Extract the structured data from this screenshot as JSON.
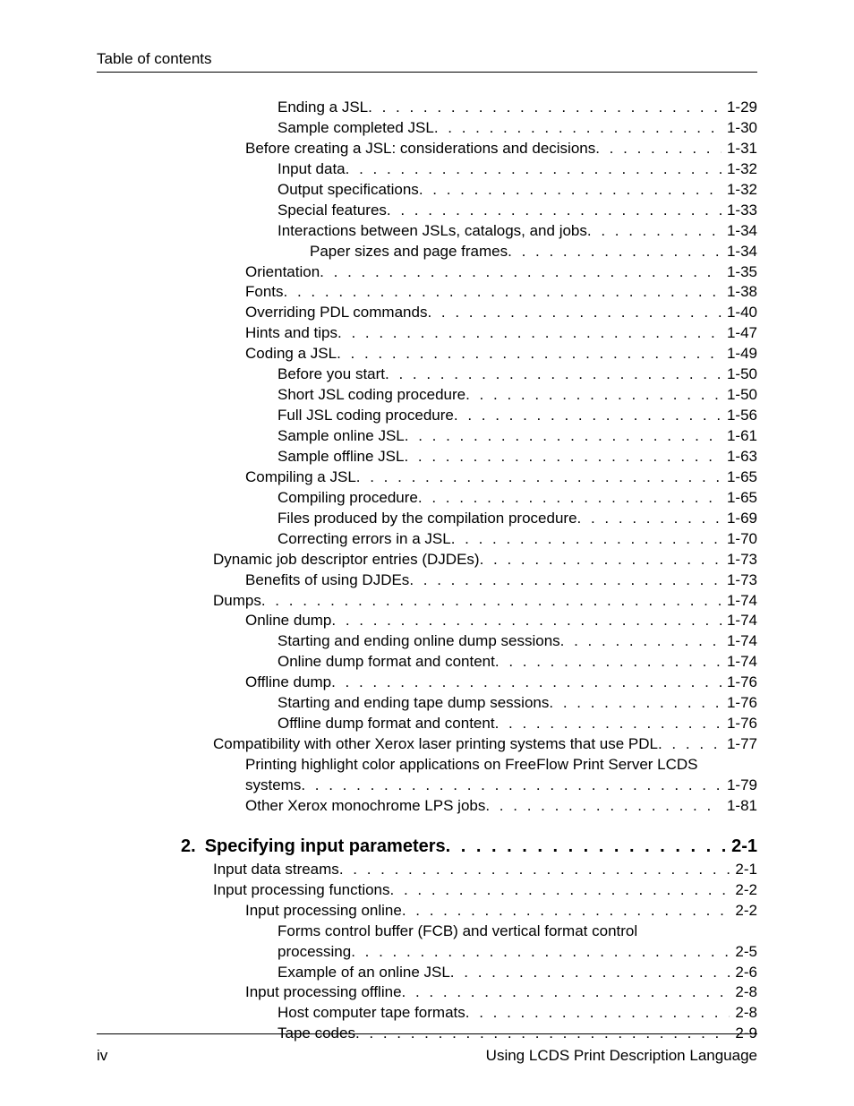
{
  "header": {
    "title": "Table of contents"
  },
  "footer": {
    "left": "iv",
    "right": "Using LCDS Print Description Language"
  },
  "toc": {
    "entries": [
      {
        "indent": 2,
        "label": "Ending a JSL",
        "page": "1-29"
      },
      {
        "indent": 2,
        "label": "Sample completed JSL",
        "page": "1-30"
      },
      {
        "indent": 1,
        "label": "Before creating a JSL: considerations and decisions",
        "page": "1-31"
      },
      {
        "indent": 2,
        "label": "Input data",
        "page": "1-32"
      },
      {
        "indent": 2,
        "label": "Output specifications",
        "page": "1-32"
      },
      {
        "indent": 2,
        "label": "Special features",
        "page": "1-33"
      },
      {
        "indent": 2,
        "label": "Interactions between JSLs, catalogs, and jobs",
        "page": "1-34"
      },
      {
        "indent": 3,
        "label": "Paper sizes and page frames",
        "page": "1-34"
      },
      {
        "indent": 1,
        "label": "Orientation",
        "page": "1-35"
      },
      {
        "indent": 1,
        "label": "Fonts",
        "page": "1-38"
      },
      {
        "indent": 1,
        "label": "Overriding PDL commands",
        "page": "1-40"
      },
      {
        "indent": 1,
        "label": "Hints and tips",
        "page": "1-47"
      },
      {
        "indent": 1,
        "label": "Coding a JSL",
        "page": "1-49"
      },
      {
        "indent": 2,
        "label": "Before you start",
        "page": "1-50"
      },
      {
        "indent": 2,
        "label": "Short JSL coding procedure",
        "page": "1-50"
      },
      {
        "indent": 2,
        "label": "Full JSL coding procedure",
        "page": "1-56"
      },
      {
        "indent": 2,
        "label": "Sample online JSL",
        "page": "1-61"
      },
      {
        "indent": 2,
        "label": "Sample offline JSL",
        "page": "1-63"
      },
      {
        "indent": 1,
        "label": "Compiling a JSL",
        "page": "1-65"
      },
      {
        "indent": 2,
        "label": "Compiling procedure",
        "page": "1-65"
      },
      {
        "indent": 2,
        "label": "Files produced by the compilation procedure",
        "page": "1-69"
      },
      {
        "indent": 2,
        "label": "Correcting errors in a JSL",
        "page": "1-70"
      },
      {
        "indent": 0,
        "label": "Dynamic job descriptor entries (DJDEs)",
        "page": "1-73"
      },
      {
        "indent": 1,
        "label": "Benefits of using DJDEs",
        "page": "1-73"
      },
      {
        "indent": 0,
        "label": "Dumps",
        "page": "1-74"
      },
      {
        "indent": 1,
        "label": "Online dump",
        "page": "1-74"
      },
      {
        "indent": 2,
        "label": "Starting and ending online dump sessions",
        "page": "1-74"
      },
      {
        "indent": 2,
        "label": "Online dump format and content",
        "page": "1-74"
      },
      {
        "indent": 1,
        "label": "Offline dump",
        "page": "1-76"
      },
      {
        "indent": 2,
        "label": "Starting and ending tape dump sessions",
        "page": "1-76"
      },
      {
        "indent": 2,
        "label": "Offline dump format and content",
        "page": "1-76"
      },
      {
        "indent": 0,
        "label": "Compatibility with other Xerox laser printing systems that use PDL",
        "page": "1-77"
      },
      {
        "indent": 1,
        "label": "Printing highlight color applications on FreeFlow Print Server LCDS",
        "page": "",
        "nopage": true
      },
      {
        "indent": 1,
        "label": "systems",
        "page": "1-79"
      },
      {
        "indent": 1,
        "label": "Other Xerox monochrome LPS jobs",
        "page": "1-81"
      }
    ],
    "chapter": {
      "num": "2.",
      "label": "Specifying input parameters",
      "page": "2-1"
    },
    "entries2": [
      {
        "indent": 0,
        "label": "Input data streams",
        "page": "2-1"
      },
      {
        "indent": 0,
        "label": "Input processing functions",
        "page": "2-2"
      },
      {
        "indent": 1,
        "label": "Input processing online",
        "page": "2-2"
      },
      {
        "indent": 2,
        "label": "Forms control buffer (FCB) and vertical format control",
        "page": "",
        "nopage": true
      },
      {
        "indent": 2,
        "label": "processing",
        "page": "2-5"
      },
      {
        "indent": 2,
        "label": "Example of an online JSL",
        "page": "2-6"
      },
      {
        "indent": 1,
        "label": "Input processing offline",
        "page": "2-8"
      },
      {
        "indent": 2,
        "label": "Host computer tape formats",
        "page": "2-8"
      },
      {
        "indent": 2,
        "label": "Tape codes",
        "page": "2-9"
      }
    ]
  }
}
